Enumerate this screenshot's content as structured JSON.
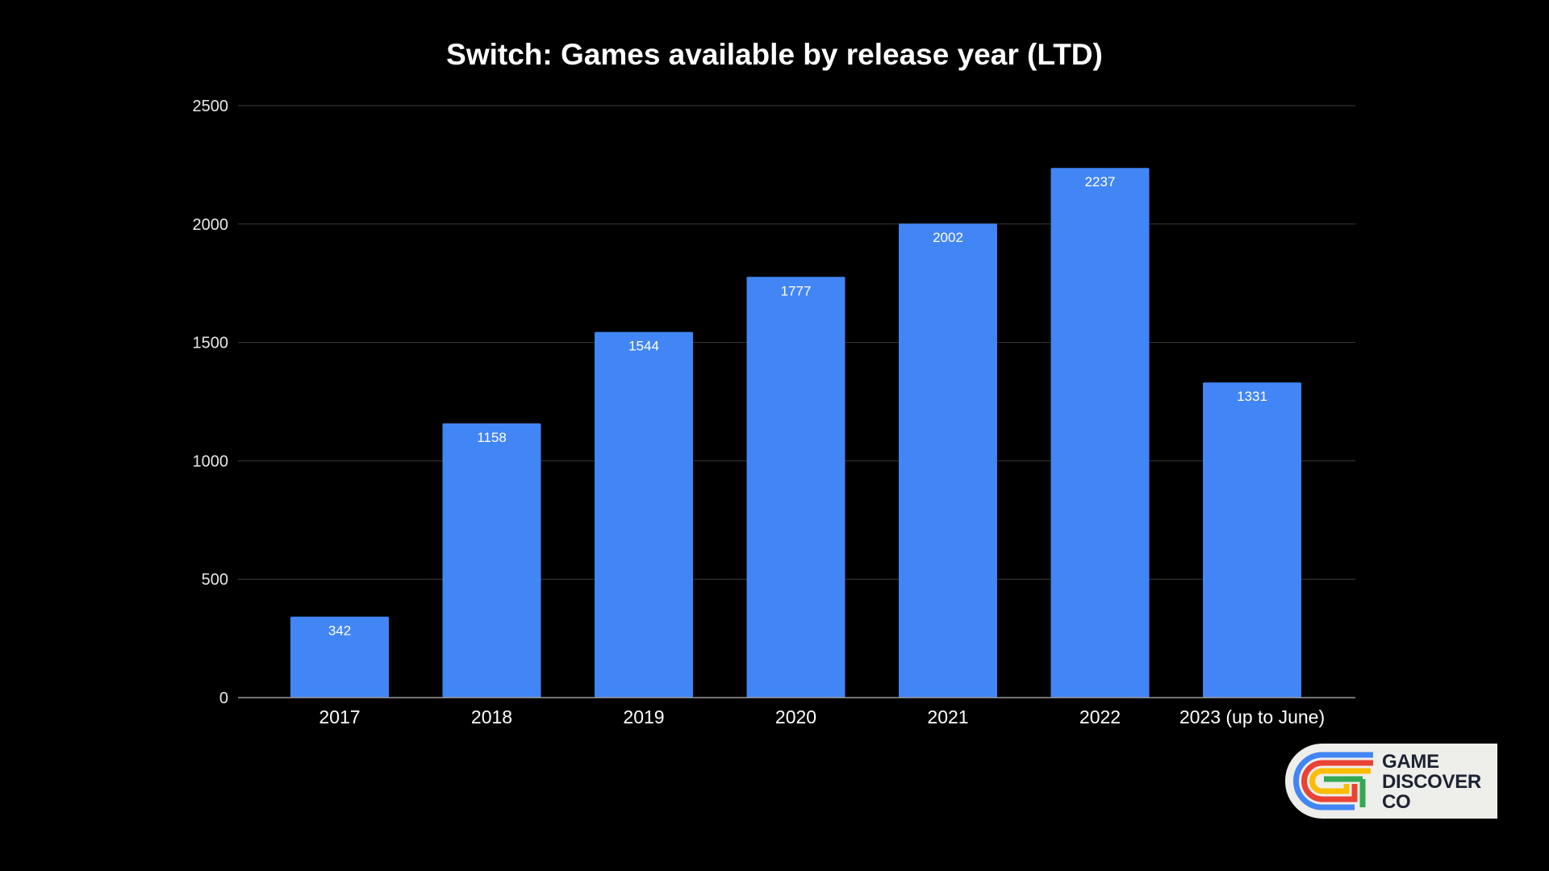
{
  "chart_data": {
    "type": "bar",
    "title": "Switch: Games available by release year (LTD)",
    "xlabel": "",
    "ylabel": "",
    "categories": [
      "2017",
      "2018",
      "2019",
      "2020",
      "2021",
      "2022",
      "2023 (up to June)"
    ],
    "values": [
      342,
      1158,
      1544,
      1777,
      2002,
      2237,
      1331
    ],
    "data_labels": [
      "342",
      "1158",
      "1544",
      "1777",
      "2002",
      "2237",
      "1331"
    ],
    "ylim": [
      0,
      2500
    ],
    "yticks": [
      0,
      500,
      1000,
      1500,
      2000,
      2500
    ],
    "ytick_labels": [
      "0",
      "500",
      "1000",
      "1500",
      "2000",
      "2500"
    ],
    "grid": true,
    "legend": "none",
    "colors": {
      "background": "#000000",
      "bar": "#4285f4",
      "gridline": "#3a3a3a",
      "baseline": "#9a9a9a",
      "text": "#ffffff"
    }
  },
  "logo": {
    "line1": "GAME",
    "line2": "DISCOVER",
    "line3": "CO",
    "background": "#eeeeea",
    "text_color": "#1d2333",
    "stripe_colors": [
      "#4285f4",
      "#ea4335",
      "#fbbc04",
      "#34a853"
    ]
  }
}
